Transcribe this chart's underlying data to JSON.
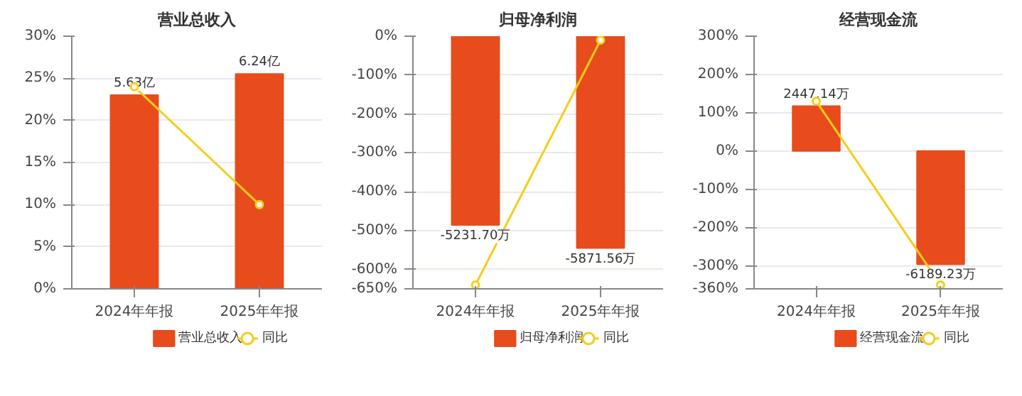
{
  "chart_data": [
    {
      "type": "bar",
      "title": "营业总收入",
      "categories": [
        "2024年年报",
        "2025年年报"
      ],
      "ylim": [
        0,
        30
      ],
      "yticks": [
        {
          "value": 0,
          "label": "0%"
        },
        {
          "value": 5,
          "label": "5%"
        },
        {
          "value": 10,
          "label": "10%"
        },
        {
          "value": 15,
          "label": "15%"
        },
        {
          "value": 20,
          "label": "20%"
        },
        {
          "value": 25,
          "label": "25%"
        },
        {
          "value": 30,
          "label": "30%"
        }
      ],
      "y2lim": [
        0,
        7.34
      ],
      "tick_labels": "xy",
      "grid": "y",
      "legend": "bottom",
      "series": [
        {
          "name": "营业总收入",
          "axis": "y2",
          "color": "#e84b1c",
          "values": [
            5.63,
            6.24
          ],
          "value_labels": [
            "5.63亿",
            "6.24亿"
          ]
        },
        {
          "name": "同比",
          "type": "line",
          "color": "#f5cd1a",
          "marker": "circle",
          "values": [
            24,
            10
          ]
        }
      ]
    },
    {
      "type": "bar",
      "title": "归母净利润",
      "categories": [
        "2024年年报",
        "2025年年报"
      ],
      "ylim": [
        -650,
        0
      ],
      "yticks": [
        {
          "value": -650,
          "label": "-650%"
        },
        {
          "value": -600,
          "label": "-600%"
        },
        {
          "value": -500,
          "label": "-500%"
        },
        {
          "value": -400,
          "label": "-400%"
        },
        {
          "value": -300,
          "label": "-300%"
        },
        {
          "value": -200,
          "label": "-200%"
        },
        {
          "value": -100,
          "label": "-100%"
        },
        {
          "value": 0,
          "label": "0%"
        }
      ],
      "y2lim": [
        -7000,
        0
      ],
      "tick_labels": "xy",
      "grid": "y",
      "legend": "bottom",
      "series": [
        {
          "name": "归母净利润",
          "axis": "y2",
          "color": "#e84b1c",
          "values": [
            -5231.7,
            -5871.56
          ],
          "value_labels": [
            "-5231.70万",
            "-5871.56万"
          ]
        },
        {
          "name": "同比",
          "type": "line",
          "color": "#f5cd1a",
          "marker": "circle",
          "values": [
            -640,
            -10
          ]
        }
      ]
    },
    {
      "type": "bar",
      "title": "经营现金流",
      "categories": [
        "2024年年报",
        "2025年年报"
      ],
      "ylim": [
        -360,
        300
      ],
      "yticks": [
        {
          "value": -360,
          "label": "-360%"
        },
        {
          "value": -300,
          "label": "-300%"
        },
        {
          "value": -200,
          "label": "-200%"
        },
        {
          "value": -100,
          "label": "-100%"
        },
        {
          "value": 0,
          "label": "0%"
        },
        {
          "value": 100,
          "label": "100%"
        },
        {
          "value": 200,
          "label": "200%"
        },
        {
          "value": 300,
          "label": "300%"
        }
      ],
      "y2lim": [
        -7530,
        6270
      ],
      "tick_labels": "xy",
      "grid": "y",
      "legend": "bottom",
      "series": [
        {
          "name": "经营现金流",
          "axis": "y2",
          "color": "#e84b1c",
          "values": [
            2447.14,
            -6189.23
          ],
          "value_labels": [
            "2447.14万",
            "-6189.23万"
          ]
        },
        {
          "name": "同比",
          "type": "line",
          "color": "#f5cd1a",
          "marker": "circle",
          "values": [
            130,
            -350
          ]
        }
      ]
    }
  ]
}
